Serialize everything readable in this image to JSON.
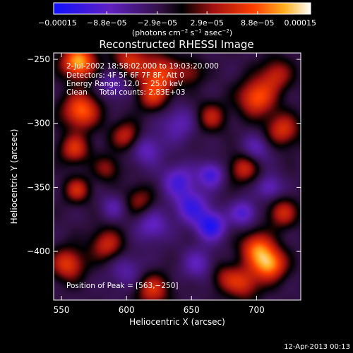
{
  "chart_data": {
    "type": "heatmap",
    "title": "Reconstructed RHESSI Image",
    "xlabel": "Heliocentric X (arcsec)",
    "ylabel": "Heliocentric Y (arcsec)",
    "xlim": [
      544,
      734
    ],
    "ylim": [
      -438,
      -245
    ],
    "x_ticks": [
      550,
      600,
      650,
      700
    ],
    "y_ticks": [
      -250,
      -300,
      -350,
      -400
    ],
    "x_tick_labels": [
      "550",
      "600",
      "650",
      "700"
    ],
    "y_tick_labels": [
      "−250",
      "−300",
      "−350",
      "−400"
    ],
    "grid": false,
    "colorbar": {
      "min": -0.00015,
      "max": 0.00015,
      "tick_values": [
        -0.00015,
        -8.8e-05,
        -2.9e-05,
        2.9e-05,
        8.8e-05,
        0.00015
      ],
      "tick_labels": [
        "−0.00015",
        "−8.8e−05",
        "−2.9e−05",
        "2.9e−05",
        "8.8e−05",
        "0.00015"
      ],
      "unit_main": "(photons cm",
      "unit_sup1": "−2",
      "unit_mid": " s",
      "unit_sup2": "−1",
      "unit_mid2": " asec",
      "unit_sup3": "−2",
      "unit_end": ")"
    },
    "annotations": [
      "2-Jul-2002 18:58:02.000 to 19:03:20.000",
      "Detectors: 4F 5F 6F 7F 8F, Att 0",
      "Energy Range: 12.0 − 25.0 keV",
      "Clean     Total counts: 2.83E+03"
    ],
    "peak_label": "Position of Peak = [563,−250]",
    "peak": {
      "x": 563,
      "y": -250
    },
    "hotspots": [
      {
        "x": 563,
        "y": -252,
        "v": 1.0,
        "r": 9
      },
      {
        "x": 602,
        "y": -250,
        "v": 0.55,
        "r": 9
      },
      {
        "x": 625,
        "y": -262,
        "v": 0.7,
        "r": 11
      },
      {
        "x": 715,
        "y": -262,
        "v": 0.5,
        "r": 9
      },
      {
        "x": 700,
        "y": -280,
        "v": 0.75,
        "r": 10
      },
      {
        "x": 565,
        "y": -290,
        "v": 0.8,
        "r": 10
      },
      {
        "x": 665,
        "y": -295,
        "v": 0.5,
        "r": 8
      },
      {
        "x": 720,
        "y": -305,
        "v": 0.6,
        "r": 9
      },
      {
        "x": 600,
        "y": -310,
        "v": 0.55,
        "r": 8
      },
      {
        "x": 620,
        "y": -280,
        "v": 0.45,
        "r": 8
      },
      {
        "x": 690,
        "y": -335,
        "v": 0.55,
        "r": 8
      },
      {
        "x": 585,
        "y": -335,
        "v": 0.4,
        "r": 7
      },
      {
        "x": 560,
        "y": -320,
        "v": 0.6,
        "r": 8
      },
      {
        "x": 562,
        "y": -352,
        "v": 0.55,
        "r": 7
      },
      {
        "x": 610,
        "y": -360,
        "v": 0.4,
        "r": 8
      },
      {
        "x": 720,
        "y": -370,
        "v": 0.55,
        "r": 8
      },
      {
        "x": 585,
        "y": -395,
        "v": 0.55,
        "r": 9
      },
      {
        "x": 700,
        "y": -397,
        "v": 0.7,
        "r": 9
      },
      {
        "x": 710,
        "y": -410,
        "v": 0.9,
        "r": 9
      },
      {
        "x": 555,
        "y": -410,
        "v": 0.65,
        "r": 9
      },
      {
        "x": 620,
        "y": -430,
        "v": 0.6,
        "r": 9
      },
      {
        "x": 690,
        "y": -425,
        "v": 0.55,
        "r": 9
      },
      {
        "x": 650,
        "y": -260,
        "v": 0.35,
        "r": 7
      },
      {
        "x": 675,
        "y": -420,
        "v": 0.35,
        "r": 8
      },
      {
        "x": 650,
        "y": -365,
        "v": -0.55,
        "r": 9
      },
      {
        "x": 640,
        "y": -345,
        "v": -0.5,
        "r": 9
      },
      {
        "x": 665,
        "y": -380,
        "v": -0.7,
        "r": 8
      },
      {
        "x": 665,
        "y": -340,
        "v": -0.55,
        "r": 7
      },
      {
        "x": 690,
        "y": -370,
        "v": -0.5,
        "r": 7
      },
      {
        "x": 620,
        "y": -380,
        "v": -0.4,
        "r": 9
      },
      {
        "x": 615,
        "y": -320,
        "v": -0.4,
        "r": 9
      },
      {
        "x": 640,
        "y": -300,
        "v": -0.35,
        "r": 10
      },
      {
        "x": 590,
        "y": -270,
        "v": -0.35,
        "r": 8
      },
      {
        "x": 700,
        "y": -320,
        "v": -0.35,
        "r": 8
      },
      {
        "x": 600,
        "y": -415,
        "v": -0.3,
        "r": 10
      },
      {
        "x": 655,
        "y": -410,
        "v": -0.35,
        "r": 9
      },
      {
        "x": 710,
        "y": -350,
        "v": -0.4,
        "r": 7
      },
      {
        "x": 590,
        "y": -365,
        "v": -0.3,
        "r": 7
      }
    ]
  },
  "footer": {
    "timestamp": "12-Apr-2013 00:13"
  }
}
